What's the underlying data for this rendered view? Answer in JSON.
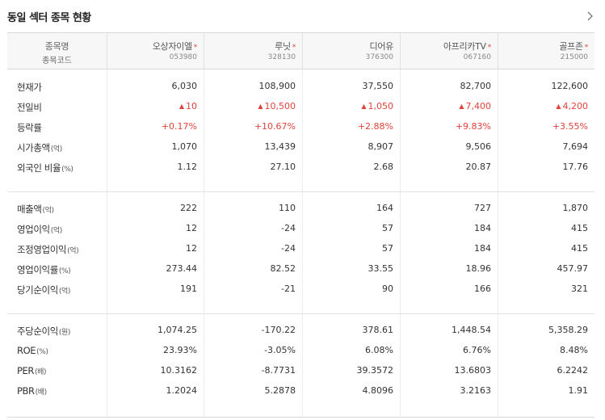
{
  "header": {
    "title": "동일 섹터 종목 현황"
  },
  "columns": {
    "label_header": {
      "name": "종목명",
      "code": "종목코드"
    },
    "stocks": [
      {
        "name": "오상자이엘",
        "code": "053980",
        "star": "*"
      },
      {
        "name": "루닛",
        "code": "328130",
        "star": "*"
      },
      {
        "name": "디어유",
        "code": "376300",
        "star": ""
      },
      {
        "name": "아프리카TV",
        "code": "067160",
        "star": "*"
      },
      {
        "name": "골프존",
        "code": "215000",
        "star": "*"
      }
    ]
  },
  "sections": [
    {
      "rows": [
        {
          "label": "현재가",
          "unit": "",
          "values": [
            "6,030",
            "108,900",
            "37,550",
            "82,700",
            "122,600"
          ]
        },
        {
          "label": "전일비",
          "unit": "",
          "values": [
            "10",
            "10,500",
            "1,050",
            "7,400",
            "4,200"
          ],
          "change": "up",
          "icon": "up-triangle-icon"
        },
        {
          "label": "등락률",
          "unit": "",
          "values": [
            "+0.17%",
            "+10.67%",
            "+2.88%",
            "+9.83%",
            "+3.55%"
          ],
          "change": "up"
        },
        {
          "label": "시가총액",
          "unit": "(억)",
          "values": [
            "1,070",
            "13,439",
            "8,907",
            "9,506",
            "7,694"
          ]
        },
        {
          "label": "외국인 비율",
          "unit": "(%)",
          "values": [
            "1.12",
            "27.10",
            "2.68",
            "20.87",
            "17.76"
          ]
        }
      ]
    },
    {
      "rows": [
        {
          "label": "매출액",
          "unit": "(억)",
          "values": [
            "222",
            "110",
            "164",
            "727",
            "1,870"
          ]
        },
        {
          "label": "영업이익",
          "unit": "(억)",
          "values": [
            "12",
            "-24",
            "57",
            "184",
            "415"
          ]
        },
        {
          "label": "조정영업이익",
          "unit": "(억)",
          "values": [
            "12",
            "-24",
            "57",
            "184",
            "415"
          ]
        },
        {
          "label": "영업이익률",
          "unit": "(%)",
          "values": [
            "273.44",
            "82.52",
            "33.55",
            "18.96",
            "457.97"
          ]
        },
        {
          "label": "당기순이익",
          "unit": "(억)",
          "values": [
            "191",
            "-21",
            "90",
            "166",
            "321"
          ]
        }
      ]
    },
    {
      "rows": [
        {
          "label": "주당순이익",
          "unit": "(원)",
          "values": [
            "1,074.25",
            "-170.22",
            "378.61",
            "1,448.54",
            "5,358.29"
          ]
        },
        {
          "label": "ROE",
          "unit": "(%)",
          "values": [
            "23.93%",
            "-3.05%",
            "6.08%",
            "6.76%",
            "8.48%"
          ]
        },
        {
          "label": "PER",
          "unit": "(배)",
          "values": [
            "10.3162",
            "-8.7731",
            "39.3572",
            "13.6803",
            "6.2242"
          ]
        },
        {
          "label": "PBR",
          "unit": "(배)",
          "values": [
            "1.2024",
            "5.2878",
            "4.8096",
            "3.2163",
            "1.91"
          ]
        }
      ]
    }
  ],
  "colors": {
    "up": "#e0433c",
    "header_bg": "#f7f7f7"
  }
}
